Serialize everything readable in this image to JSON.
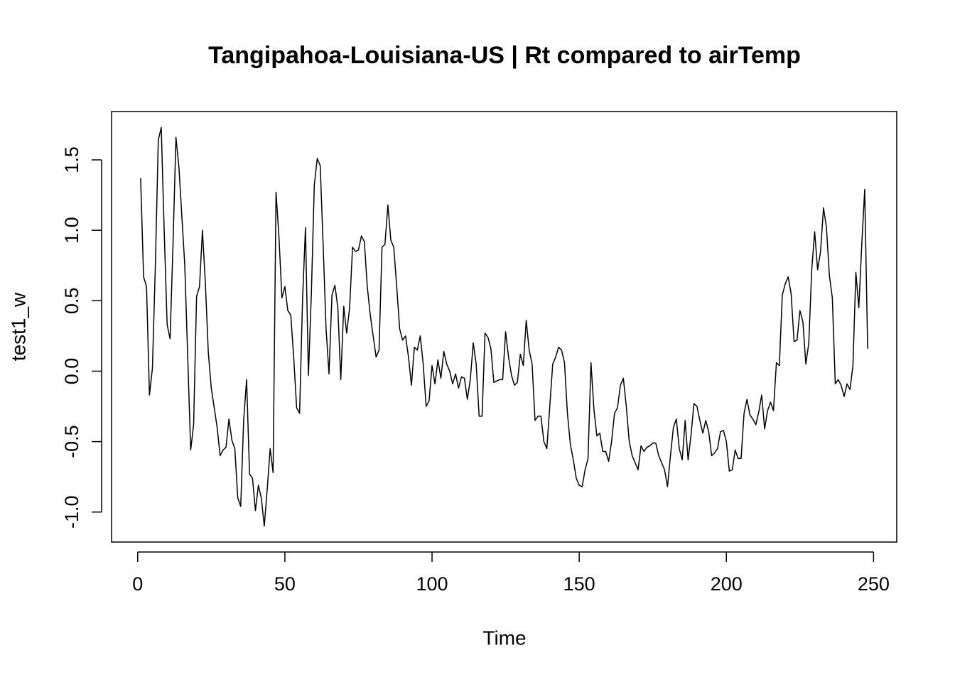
{
  "chart_data": {
    "type": "line",
    "title": "Tangipahoa-Louisiana-US | Rt compared to airTemp",
    "x_label": "Time",
    "y_label": "test1_w",
    "xlim": [
      -8.88,
      257.88
    ],
    "ylim": [
      -1.213,
      1.843
    ],
    "xticks": [
      0,
      50,
      100,
      150,
      200,
      250
    ],
    "yticks": [
      {
        "value": -1,
        "label": "-1.0"
      },
      -0.5,
      {
        "value": 0,
        "label": "0.0"
      },
      0.5,
      {
        "value": 1,
        "label": "1.0"
      },
      1.5
    ],
    "series": [
      {
        "color": "#000000",
        "x": [
          1,
          2,
          3,
          4,
          5,
          6,
          7,
          8,
          9,
          10,
          11,
          12,
          13,
          14,
          15,
          16,
          17,
          18,
          19,
          20,
          21,
          22,
          23,
          24,
          25,
          26,
          27,
          28,
          29,
          30,
          31,
          32,
          33,
          34,
          35,
          36,
          37,
          38,
          39,
          40,
          41,
          42,
          43,
          44,
          45,
          46,
          47,
          48,
          49,
          50,
          51,
          52,
          53,
          54,
          55,
          56,
          57,
          58,
          59,
          60,
          61,
          62,
          63,
          64,
          65,
          66,
          67,
          68,
          69,
          70,
          71,
          72,
          73,
          74,
          75,
          76,
          77,
          78,
          79,
          80,
          81,
          82,
          83,
          84,
          85,
          86,
          87,
          88,
          89,
          90,
          91,
          92,
          93,
          94,
          95,
          96,
          97,
          98,
          99,
          100,
          101,
          102,
          103,
          104,
          105,
          106,
          107,
          108,
          109,
          110,
          111,
          112,
          113,
          114,
          115,
          116,
          117,
          118,
          119,
          120,
          121,
          122,
          123,
          124,
          125,
          126,
          127,
          128,
          129,
          130,
          131,
          132,
          133,
          134,
          135,
          136,
          137,
          138,
          139,
          140,
          141,
          142,
          143,
          144,
          145,
          146,
          147,
          148,
          149,
          150,
          151,
          152,
          153,
          154,
          155,
          156,
          157,
          158,
          159,
          160,
          161,
          162,
          163,
          164,
          165,
          166,
          167,
          168,
          169,
          170,
          171,
          172,
          173,
          174,
          175,
          176,
          177,
          178,
          179,
          180,
          181,
          182,
          183,
          184,
          185,
          186,
          187,
          188,
          189,
          190,
          191,
          192,
          193,
          194,
          195,
          196,
          197,
          198,
          199,
          200,
          201,
          202,
          203,
          204,
          205,
          206,
          207,
          208,
          209,
          210,
          211,
          212,
          213,
          214,
          215,
          216,
          217,
          218,
          219,
          220,
          221,
          222,
          223,
          224,
          225,
          226,
          227,
          228,
          229,
          230,
          231,
          232,
          233,
          234,
          235,
          236,
          237,
          238,
          239,
          240,
          241,
          242,
          243,
          244,
          245,
          246,
          247,
          248
        ],
        "values": [
          1.37,
          0.67,
          0.6,
          -0.17,
          0.02,
          0.75,
          1.64,
          1.73,
          1.0,
          0.33,
          0.23,
          0.9,
          1.66,
          1.45,
          1.1,
          0.75,
          0.1,
          -0.56,
          -0.38,
          0.53,
          0.6,
          1.0,
          0.62,
          0.13,
          -0.12,
          -0.26,
          -0.4,
          -0.6,
          -0.56,
          -0.54,
          -0.34,
          -0.49,
          -0.55,
          -0.9,
          -0.96,
          -0.35,
          -0.06,
          -0.73,
          -0.76,
          -0.99,
          -0.81,
          -0.9,
          -1.1,
          -0.84,
          -0.55,
          -0.72,
          1.27,
          0.95,
          0.52,
          0.6,
          0.43,
          0.4,
          0.1,
          -0.26,
          -0.3,
          0.5,
          1.02,
          -0.03,
          0.55,
          1.32,
          1.51,
          1.46,
          0.9,
          0.3,
          -0.02,
          0.54,
          0.61,
          0.45,
          -0.06,
          0.46,
          0.27,
          0.45,
          0.88,
          0.85,
          0.86,
          0.96,
          0.92,
          0.6,
          0.4,
          0.25,
          0.1,
          0.15,
          0.88,
          0.9,
          1.18,
          0.93,
          0.88,
          0.6,
          0.3,
          0.22,
          0.25,
          0.1,
          -0.1,
          0.17,
          0.15,
          0.25,
          0.05,
          -0.25,
          -0.21,
          0.04,
          -0.09,
          0.08,
          -0.05,
          0.14,
          0.05,
          0.0,
          -0.09,
          -0.02,
          -0.12,
          -0.04,
          -0.05,
          -0.2,
          -0.06,
          0.2,
          0.05,
          -0.32,
          -0.32,
          0.27,
          0.24,
          0.16,
          -0.08,
          -0.07,
          -0.06,
          -0.06,
          0.28,
          0.1,
          -0.03,
          -0.1,
          -0.08,
          0.12,
          0.04,
          0.36,
          0.15,
          0.05,
          -0.35,
          -0.32,
          -0.32,
          -0.5,
          -0.55,
          -0.25,
          0.05,
          0.1,
          0.17,
          0.15,
          0.06,
          -0.3,
          -0.52,
          -0.63,
          -0.76,
          -0.81,
          -0.82,
          -0.7,
          -0.62,
          0.06,
          -0.27,
          -0.46,
          -0.44,
          -0.57,
          -0.57,
          -0.64,
          -0.5,
          -0.3,
          -0.26,
          -0.1,
          -0.05,
          -0.25,
          -0.5,
          -0.6,
          -0.65,
          -0.7,
          -0.53,
          -0.57,
          -0.54,
          -0.53,
          -0.51,
          -0.51,
          -0.6,
          -0.65,
          -0.7,
          -0.82,
          -0.6,
          -0.4,
          -0.34,
          -0.55,
          -0.63,
          -0.35,
          -0.63,
          -0.45,
          -0.23,
          -0.25,
          -0.35,
          -0.44,
          -0.35,
          -0.43,
          -0.6,
          -0.58,
          -0.55,
          -0.43,
          -0.42,
          -0.5,
          -0.71,
          -0.7,
          -0.56,
          -0.62,
          -0.62,
          -0.3,
          -0.2,
          -0.31,
          -0.34,
          -0.38,
          -0.29,
          -0.17,
          -0.41,
          -0.28,
          -0.22,
          -0.28,
          0.06,
          0.04,
          0.54,
          0.62,
          0.67,
          0.55,
          0.21,
          0.22,
          0.43,
          0.35,
          0.05,
          0.2,
          0.72,
          0.99,
          0.72,
          0.85,
          1.16,
          1.02,
          0.68,
          0.52,
          -0.09,
          -0.06,
          -0.1,
          -0.18,
          -0.09,
          -0.13,
          0.04,
          0.7,
          0.45,
          0.9,
          1.29,
          0.16
        ]
      }
    ]
  }
}
